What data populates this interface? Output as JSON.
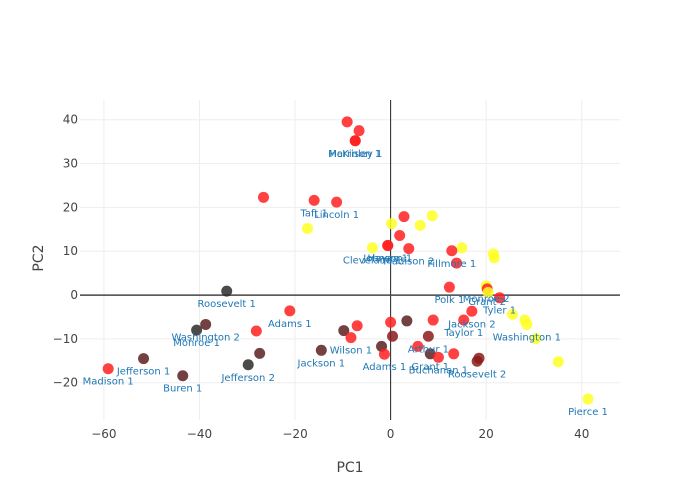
{
  "chart_data": {
    "type": "scatter",
    "title": "",
    "xlabel": "PC1",
    "ylabel": "PC2",
    "xlim": [
      -65,
      48
    ],
    "ylim": [
      -28.5,
      44.5
    ],
    "xticks": [
      -60,
      -40,
      -20,
      0,
      20,
      40
    ],
    "yticks": [
      -20,
      -10,
      0,
      10,
      20,
      30,
      40
    ],
    "grid": true,
    "legend": "none",
    "colors": {
      "red": "#ff2020",
      "yellow": "#ffff22",
      "darkred": "#8b1a1a",
      "maroon": "#5a2020",
      "dark": "#2e2a2a",
      "label": "#2e7bb6",
      "zeroline": "#444444",
      "grid": "#eeeeee"
    },
    "points": [
      {
        "x": -9.1,
        "y": 39.5,
        "color": "red",
        "label": ""
      },
      {
        "x": -6.6,
        "y": 37.5,
        "color": "red",
        "label": ""
      },
      {
        "x": -7.4,
        "y": 35.2,
        "color": "red",
        "label": "Harrison 1"
      },
      {
        "x": -7.4,
        "y": 35.2,
        "color": "red",
        "label": "McKinley 1"
      },
      {
        "x": -26.6,
        "y": 22.3,
        "color": "red",
        "label": ""
      },
      {
        "x": -16.0,
        "y": 21.6,
        "color": "red",
        "label": "Taft 1"
      },
      {
        "x": -11.3,
        "y": 21.2,
        "color": "red",
        "label": "Lincoln 1"
      },
      {
        "x": -17.4,
        "y": 15.2,
        "color": "yellow",
        "label": ""
      },
      {
        "x": 2.8,
        "y": 17.9,
        "color": "red",
        "label": ""
      },
      {
        "x": 8.7,
        "y": 18.1,
        "color": "yellow",
        "label": ""
      },
      {
        "x": 0.2,
        "y": 16.3,
        "color": "yellow",
        "label": ""
      },
      {
        "x": 6.2,
        "y": 15.9,
        "color": "yellow",
        "label": ""
      },
      {
        "x": 1.9,
        "y": 13.6,
        "color": "red",
        "label": ""
      },
      {
        "x": -3.8,
        "y": 10.8,
        "color": "yellow",
        "label": "Cleveland 1"
      },
      {
        "x": -0.6,
        "y": 11.3,
        "color": "red",
        "label": "Hayes 1"
      },
      {
        "x": 3.8,
        "y": 10.6,
        "color": "red",
        "label": "Madison 2"
      },
      {
        "x": -0.6,
        "y": 11.3,
        "color": "red",
        "label": "Johnson 1"
      },
      {
        "x": 14.9,
        "y": 10.8,
        "color": "yellow",
        "label": ""
      },
      {
        "x": 12.8,
        "y": 10.1,
        "color": "red",
        "label": "Fillmore 1"
      },
      {
        "x": 13.8,
        "y": 7.3,
        "color": "red",
        "label": ""
      },
      {
        "x": 21.5,
        "y": 9.4,
        "color": "yellow",
        "label": ""
      },
      {
        "x": 21.7,
        "y": 8.5,
        "color": "yellow",
        "label": ""
      },
      {
        "x": 12.3,
        "y": 1.8,
        "color": "red",
        "label": "Polk 1"
      },
      {
        "x": 20.0,
        "y": 2.1,
        "color": "yellow",
        "label": "Monroe 2"
      },
      {
        "x": 20.2,
        "y": 1.4,
        "color": "red",
        "label": "Grant 2"
      },
      {
        "x": 22.8,
        "y": -0.6,
        "color": "red",
        "label": "Tyler 1"
      },
      {
        "x": 20.4,
        "y": 0.6,
        "color": "yellow",
        "label": ""
      },
      {
        "x": 17.0,
        "y": -3.7,
        "color": "red",
        "label": "Jackson 2"
      },
      {
        "x": 25.5,
        "y": -4.4,
        "color": "yellow",
        "label": ""
      },
      {
        "x": 28.1,
        "y": -5.7,
        "color": "yellow",
        "label": ""
      },
      {
        "x": 28.5,
        "y": -6.7,
        "color": "yellow",
        "label": "Washington 1"
      },
      {
        "x": 15.3,
        "y": -5.7,
        "color": "red",
        "label": "Taylor 1"
      },
      {
        "x": 8.9,
        "y": -5.7,
        "color": "red",
        "label": ""
      },
      {
        "x": 30.4,
        "y": -9.9,
        "color": "yellow",
        "label": ""
      },
      {
        "x": 35.1,
        "y": -15.2,
        "color": "yellow",
        "label": ""
      },
      {
        "x": 41.3,
        "y": -23.7,
        "color": "yellow",
        "label": "Pierce 1"
      },
      {
        "x": 0.0,
        "y": -6.2,
        "color": "red",
        "label": ""
      },
      {
        "x": 3.4,
        "y": -5.9,
        "color": "maroon",
        "label": ""
      },
      {
        "x": 0.4,
        "y": -9.4,
        "color": "darkred",
        "label": ""
      },
      {
        "x": 7.9,
        "y": -9.4,
        "color": "darkred",
        "label": "Arthur 1"
      },
      {
        "x": -7.0,
        "y": -7.0,
        "color": "red",
        "label": ""
      },
      {
        "x": -9.8,
        "y": -8.1,
        "color": "maroon",
        "label": ""
      },
      {
        "x": -8.3,
        "y": -9.7,
        "color": "red",
        "label": "Wilson 1"
      },
      {
        "x": -1.9,
        "y": -11.7,
        "color": "maroon",
        "label": ""
      },
      {
        "x": -1.3,
        "y": -13.5,
        "color": "red",
        "label": "Adams 1"
      },
      {
        "x": 5.7,
        "y": -11.7,
        "color": "red",
        "label": ""
      },
      {
        "x": 8.3,
        "y": -13.4,
        "color": "maroon",
        "label": "Grant 1"
      },
      {
        "x": 10.0,
        "y": -14.2,
        "color": "red",
        "label": "Buchanan 1"
      },
      {
        "x": 13.2,
        "y": -13.4,
        "color": "red",
        "label": ""
      },
      {
        "x": 18.5,
        "y": -14.4,
        "color": "darkred",
        "label": ""
      },
      {
        "x": 18.1,
        "y": -15.1,
        "color": "darkred",
        "label": "Roosevelt 2"
      },
      {
        "x": -14.5,
        "y": -12.6,
        "color": "maroon",
        "label": "Jackson 1"
      },
      {
        "x": -21.1,
        "y": -3.6,
        "color": "red",
        "label": "Adams 1"
      },
      {
        "x": -28.1,
        "y": -8.2,
        "color": "red",
        "label": ""
      },
      {
        "x": -27.4,
        "y": -13.3,
        "color": "maroon",
        "label": ""
      },
      {
        "x": -29.8,
        "y": -15.9,
        "color": "dark",
        "label": "Jefferson 2"
      },
      {
        "x": -34.3,
        "y": 0.9,
        "color": "dark",
        "label": "Roosevelt 1"
      },
      {
        "x": -38.7,
        "y": -6.7,
        "color": "maroon",
        "label": "Washington 2"
      },
      {
        "x": -40.6,
        "y": -8.0,
        "color": "dark",
        "label": "Monroe 1"
      },
      {
        "x": -51.7,
        "y": -14.5,
        "color": "maroon",
        "label": "Jefferson 1"
      },
      {
        "x": -59.1,
        "y": -16.8,
        "color": "red",
        "label": "Madison 1"
      },
      {
        "x": -43.5,
        "y": -18.4,
        "color": "maroon",
        "label": "Buren 1"
      }
    ]
  }
}
